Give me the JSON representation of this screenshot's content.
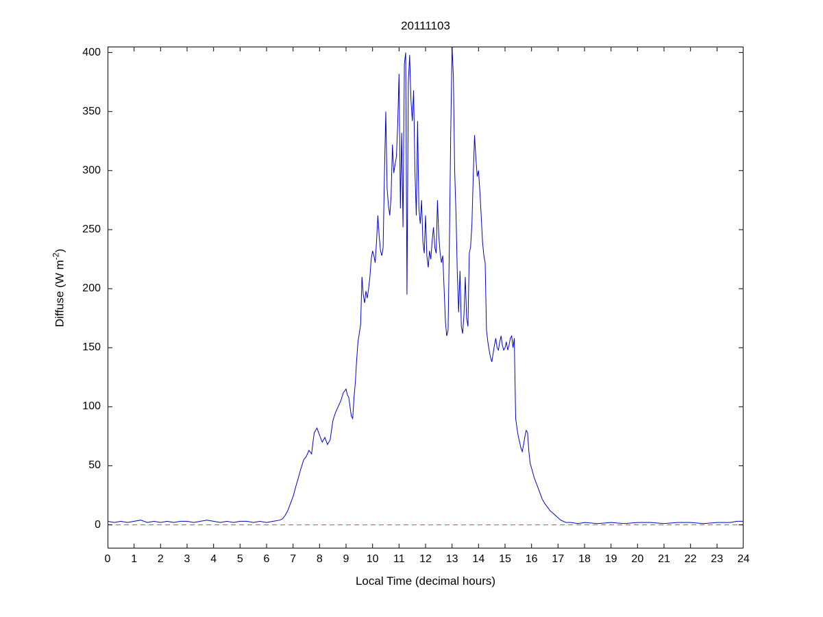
{
  "chart_data": {
    "type": "line",
    "title": "20111103",
    "xlabel": "Local Time (decimal hours)",
    "ylabel": "Diffuse (W m^-2)",
    "ylabel_parts": {
      "pre": "Diffuse (W m",
      "sup": "-2",
      "post": ")"
    },
    "xlim": [
      0,
      24
    ],
    "ylim": [
      -20,
      405
    ],
    "x_ticks": [
      0,
      1,
      2,
      3,
      4,
      5,
      6,
      7,
      8,
      9,
      10,
      11,
      12,
      13,
      14,
      15,
      16,
      17,
      18,
      19,
      20,
      21,
      22,
      23,
      24
    ],
    "y_ticks": [
      0,
      50,
      100,
      150,
      200,
      250,
      300,
      350,
      400
    ],
    "grid": false,
    "legend": false,
    "frame_color": "#000000",
    "series": [
      {
        "name": "zero-reference-line",
        "color": "#C05050",
        "style": "dashed",
        "points": [
          [
            0,
            0
          ],
          [
            24,
            0
          ]
        ]
      },
      {
        "name": "diffuse-irradiance",
        "color": "#0000C8",
        "style": "solid",
        "points": [
          [
            0,
            3
          ],
          [
            0.25,
            2
          ],
          [
            0.5,
            3
          ],
          [
            0.75,
            2
          ],
          [
            1,
            3
          ],
          [
            1.25,
            4
          ],
          [
            1.5,
            2
          ],
          [
            1.75,
            3
          ],
          [
            2,
            2
          ],
          [
            2.25,
            3
          ],
          [
            2.5,
            2
          ],
          [
            2.75,
            3
          ],
          [
            3,
            3
          ],
          [
            3.25,
            2
          ],
          [
            3.5,
            3
          ],
          [
            3.75,
            4
          ],
          [
            4,
            3
          ],
          [
            4.25,
            2
          ],
          [
            4.5,
            3
          ],
          [
            4.75,
            2
          ],
          [
            5,
            3
          ],
          [
            5.25,
            3
          ],
          [
            5.5,
            2
          ],
          [
            5.75,
            3
          ],
          [
            6,
            2
          ],
          [
            6.25,
            3
          ],
          [
            6.5,
            4
          ],
          [
            6.6,
            5
          ],
          [
            6.7,
            8
          ],
          [
            6.8,
            12
          ],
          [
            6.9,
            18
          ],
          [
            7,
            24
          ],
          [
            7.1,
            32
          ],
          [
            7.2,
            40
          ],
          [
            7.3,
            48
          ],
          [
            7.4,
            55
          ],
          [
            7.5,
            58
          ],
          [
            7.6,
            63
          ],
          [
            7.7,
            60
          ],
          [
            7.75,
            70
          ],
          [
            7.8,
            78
          ],
          [
            7.9,
            82
          ],
          [
            8,
            76
          ],
          [
            8.1,
            70
          ],
          [
            8.2,
            74
          ],
          [
            8.3,
            68
          ],
          [
            8.4,
            72
          ],
          [
            8.5,
            88
          ],
          [
            8.6,
            95
          ],
          [
            8.7,
            100
          ],
          [
            8.8,
            105
          ],
          [
            8.9,
            112
          ],
          [
            9,
            115
          ],
          [
            9.05,
            110
          ],
          [
            9.1,
            108
          ],
          [
            9.15,
            100
          ],
          [
            9.2,
            92
          ],
          [
            9.25,
            90
          ],
          [
            9.3,
            108
          ],
          [
            9.35,
            120
          ],
          [
            9.4,
            140
          ],
          [
            9.45,
            155
          ],
          [
            9.5,
            162
          ],
          [
            9.55,
            170
          ],
          [
            9.6,
            210
          ],
          [
            9.65,
            195
          ],
          [
            9.7,
            188
          ],
          [
            9.75,
            198
          ],
          [
            9.8,
            192
          ],
          [
            9.85,
            200
          ],
          [
            9.9,
            210
          ],
          [
            9.95,
            225
          ],
          [
            10,
            232
          ],
          [
            10.05,
            228
          ],
          [
            10.1,
            222
          ],
          [
            10.15,
            240
          ],
          [
            10.2,
            262
          ],
          [
            10.25,
            245
          ],
          [
            10.3,
            232
          ],
          [
            10.35,
            228
          ],
          [
            10.4,
            235
          ],
          [
            10.45,
            300
          ],
          [
            10.5,
            350
          ],
          [
            10.55,
            285
          ],
          [
            10.6,
            270
          ],
          [
            10.65,
            262
          ],
          [
            10.7,
            278
          ],
          [
            10.75,
            322
          ],
          [
            10.8,
            298
          ],
          [
            10.85,
            305
          ],
          [
            10.9,
            312
          ],
          [
            10.95,
            340
          ],
          [
            11,
            382
          ],
          [
            11.05,
            268
          ],
          [
            11.1,
            332
          ],
          [
            11.15,
            252
          ],
          [
            11.2,
            390
          ],
          [
            11.25,
            400
          ],
          [
            11.3,
            195
          ],
          [
            11.35,
            375
          ],
          [
            11.4,
            398
          ],
          [
            11.45,
            360
          ],
          [
            11.5,
            342
          ],
          [
            11.55,
            368
          ],
          [
            11.6,
            300
          ],
          [
            11.65,
            262
          ],
          [
            11.7,
            342
          ],
          [
            11.75,
            268
          ],
          [
            11.8,
            255
          ],
          [
            11.85,
            275
          ],
          [
            11.9,
            240
          ],
          [
            11.95,
            230
          ],
          [
            12,
            262
          ],
          [
            12.05,
            228
          ],
          [
            12.1,
            218
          ],
          [
            12.15,
            232
          ],
          [
            12.2,
            225
          ],
          [
            12.25,
            241
          ],
          [
            12.3,
            252
          ],
          [
            12.35,
            235
          ],
          [
            12.4,
            230
          ],
          [
            12.45,
            275
          ],
          [
            12.5,
            245
          ],
          [
            12.55,
            230
          ],
          [
            12.6,
            222
          ],
          [
            12.65,
            228
          ],
          [
            12.7,
            200
          ],
          [
            12.75,
            172
          ],
          [
            12.8,
            160
          ],
          [
            12.85,
            165
          ],
          [
            12.9,
            238
          ],
          [
            12.95,
            330
          ],
          [
            13,
            405
          ],
          [
            13.05,
            380
          ],
          [
            13.1,
            300
          ],
          [
            13.15,
            262
          ],
          [
            13.2,
            212
          ],
          [
            13.25,
            180
          ],
          [
            13.3,
            215
          ],
          [
            13.35,
            168
          ],
          [
            13.4,
            162
          ],
          [
            13.45,
            178
          ],
          [
            13.5,
            210
          ],
          [
            13.55,
            175
          ],
          [
            13.6,
            168
          ],
          [
            13.65,
            230
          ],
          [
            13.7,
            235
          ],
          [
            13.75,
            255
          ],
          [
            13.8,
            295
          ],
          [
            13.85,
            330
          ],
          [
            13.9,
            310
          ],
          [
            13.95,
            295
          ],
          [
            14,
            300
          ],
          [
            14.05,
            282
          ],
          [
            14.1,
            262
          ],
          [
            14.15,
            240
          ],
          [
            14.2,
            228
          ],
          [
            14.25,
            222
          ],
          [
            14.3,
            165
          ],
          [
            14.35,
            155
          ],
          [
            14.4,
            148
          ],
          [
            14.45,
            142
          ],
          [
            14.5,
            138
          ],
          [
            14.55,
            145
          ],
          [
            14.6,
            152
          ],
          [
            14.65,
            158
          ],
          [
            14.7,
            150
          ],
          [
            14.75,
            148
          ],
          [
            14.8,
            155
          ],
          [
            14.85,
            160
          ],
          [
            14.9,
            152
          ],
          [
            14.95,
            148
          ],
          [
            15,
            150
          ],
          [
            15.05,
            155
          ],
          [
            15.1,
            148
          ],
          [
            15.15,
            152
          ],
          [
            15.2,
            158
          ],
          [
            15.25,
            160
          ],
          [
            15.3,
            150
          ],
          [
            15.35,
            158
          ],
          [
            15.4,
            90
          ],
          [
            15.45,
            82
          ],
          [
            15.5,
            75
          ],
          [
            15.55,
            70
          ],
          [
            15.6,
            65
          ],
          [
            15.65,
            62
          ],
          [
            15.7,
            68
          ],
          [
            15.75,
            75
          ],
          [
            15.8,
            80
          ],
          [
            15.85,
            78
          ],
          [
            15.9,
            62
          ],
          [
            15.95,
            52
          ],
          [
            16,
            48
          ],
          [
            16.1,
            40
          ],
          [
            16.2,
            34
          ],
          [
            16.3,
            28
          ],
          [
            16.4,
            22
          ],
          [
            16.5,
            18
          ],
          [
            16.6,
            15
          ],
          [
            16.7,
            12
          ],
          [
            16.8,
            10
          ],
          [
            16.9,
            8
          ],
          [
            17,
            6
          ],
          [
            17.1,
            4
          ],
          [
            17.2,
            3
          ],
          [
            17.3,
            2
          ],
          [
            17.5,
            2
          ],
          [
            17.75,
            1
          ],
          [
            18,
            2
          ],
          [
            18.5,
            1
          ],
          [
            19,
            2
          ],
          [
            19.5,
            1
          ],
          [
            20,
            2
          ],
          [
            20.5,
            2
          ],
          [
            21,
            1
          ],
          [
            21.5,
            2
          ],
          [
            22,
            2
          ],
          [
            22.5,
            1
          ],
          [
            23,
            2
          ],
          [
            23.5,
            2
          ],
          [
            23.75,
            3
          ],
          [
            24,
            3
          ]
        ]
      }
    ]
  }
}
